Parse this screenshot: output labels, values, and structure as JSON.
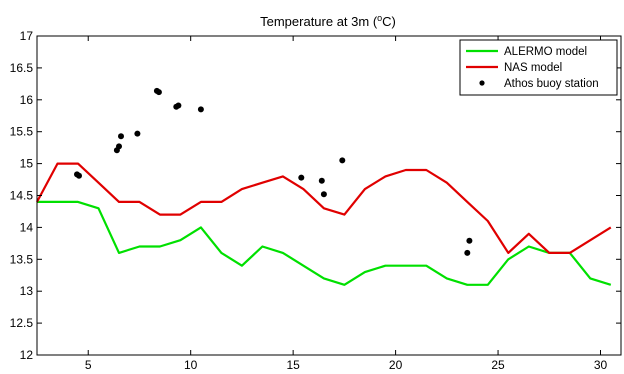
{
  "chart_data": {
    "type": "line",
    "title": "Temperature at 3m (",
    "title_sup": "o",
    "title_suffix": "C)",
    "xlabel": "",
    "ylabel": "",
    "xlim": [
      2.5,
      31
    ],
    "ylim": [
      12,
      17
    ],
    "xticks": [
      5,
      10,
      15,
      20,
      25,
      30
    ],
    "yticks": [
      12,
      12.5,
      13,
      13.5,
      14,
      14.5,
      15,
      15.5,
      16,
      16.5,
      17
    ],
    "grid": false,
    "legend_position": "top-right",
    "series": [
      {
        "name": "ALERMO model",
        "style": "line",
        "color": "#00e000",
        "x": [
          2.5,
          3.5,
          4.5,
          5.5,
          6.5,
          7.5,
          8.5,
          9.5,
          10.5,
          11.5,
          12.5,
          13.5,
          14.5,
          15.5,
          16.5,
          17.5,
          18.5,
          19.5,
          20.5,
          21.5,
          22.5,
          23.5,
          24.5,
          25.5,
          26.5,
          27.5,
          28.5,
          29.5,
          30.5
        ],
        "y": [
          14.4,
          14.4,
          14.4,
          14.3,
          13.6,
          13.7,
          13.7,
          13.8,
          14.0,
          13.6,
          13.4,
          13.7,
          13.6,
          13.4,
          13.2,
          13.1,
          13.3,
          13.4,
          13.4,
          13.4,
          13.2,
          13.1,
          13.1,
          13.5,
          13.7,
          13.6,
          13.6,
          13.2,
          13.1
        ]
      },
      {
        "name": "NAS model",
        "style": "line",
        "color": "#e00000",
        "x": [
          2.5,
          3.5,
          4.5,
          5.5,
          6.5,
          7.5,
          8.5,
          9.5,
          10.5,
          11.5,
          12.5,
          13.5,
          14.5,
          15.5,
          16.5,
          17.5,
          18.5,
          19.5,
          20.5,
          21.5,
          22.5,
          23.5,
          24.5,
          25.5,
          26.5,
          27.5,
          28.5,
          29.5,
          30.5
        ],
        "y": [
          14.4,
          15.0,
          15.0,
          14.7,
          14.4,
          14.4,
          14.2,
          14.2,
          14.4,
          14.4,
          14.6,
          14.7,
          14.8,
          14.6,
          14.3,
          14.2,
          14.6,
          14.8,
          14.9,
          14.9,
          14.7,
          14.4,
          14.1,
          13.6,
          13.9,
          13.6,
          13.6,
          13.8,
          14.0
        ]
      },
      {
        "name": "Athos buoy station",
        "style": "markers",
        "color": "#000000",
        "x": [
          4.45,
          4.55,
          6.4,
          6.5,
          6.6,
          7.4,
          8.35,
          8.45,
          9.3,
          9.4,
          10.5,
          15.4,
          16.4,
          16.5,
          17.4,
          23.5,
          23.6
        ],
        "y": [
          14.83,
          14.81,
          15.21,
          15.27,
          15.43,
          15.47,
          16.14,
          16.12,
          15.89,
          15.91,
          15.85,
          14.78,
          14.73,
          14.52,
          15.05,
          13.6,
          13.79
        ]
      }
    ]
  }
}
